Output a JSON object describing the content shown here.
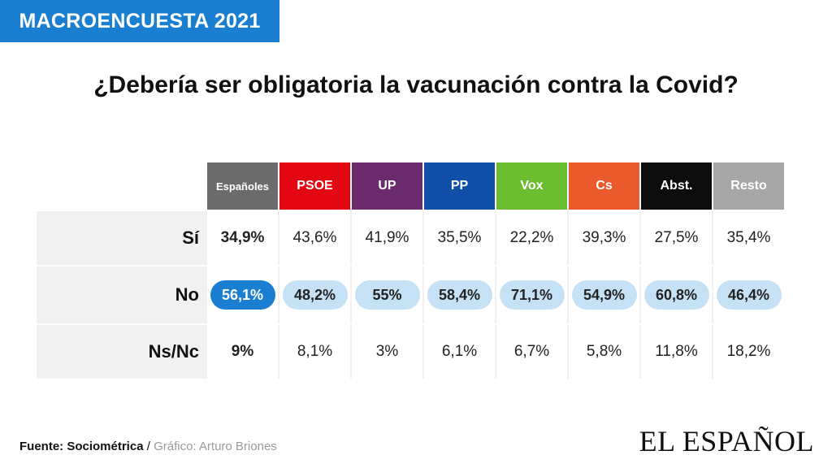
{
  "badge": "MACROENCUESTA 2021",
  "title": "¿Debería ser obligatoria la vacunación contra la Covid?",
  "footer": {
    "source": "Fuente: Sociométrica",
    "separator": " / ",
    "credit": "Gráfico: Arturo Briones"
  },
  "logo": "EL ESPAÑOL",
  "colors": {
    "Españoles": "#6b6b6b",
    "PSOE": "#e30613",
    "UP": "#6b2a6b",
    "PP": "#0f4fa8",
    "Vox": "#6bbd2f",
    "Cs": "#ea5a2c",
    "Abst.": "#0d0d0d",
    "Resto": "#a6a6a6",
    "accent": "#1a7fd0",
    "highlight": "#c5e1f6"
  },
  "chart_data": {
    "type": "table",
    "title": "¿Debería ser obligatoria la vacunación contra la Covid?",
    "columns": [
      "Españoles",
      "PSOE",
      "UP",
      "PP",
      "Vox",
      "Cs",
      "Abst.",
      "Resto"
    ],
    "rows": [
      {
        "label": "Sí",
        "values": [
          "34,9%",
          "43,6%",
          "41,9%",
          "35,5%",
          "22,2%",
          "39,3%",
          "27,5%",
          "35,4%"
        ]
      },
      {
        "label": "No",
        "values": [
          "56,1%",
          "48,2%",
          "55%",
          "58,4%",
          "71,1%",
          "54,9%",
          "60,8%",
          "46,4%"
        ]
      },
      {
        "label": "Ns/Nc",
        "values": [
          "9%",
          "8,1%",
          "3%",
          "6,1%",
          "6,7%",
          "5,8%",
          "11,8%",
          "18,2%"
        ]
      }
    ],
    "highlighted_row": "No"
  }
}
